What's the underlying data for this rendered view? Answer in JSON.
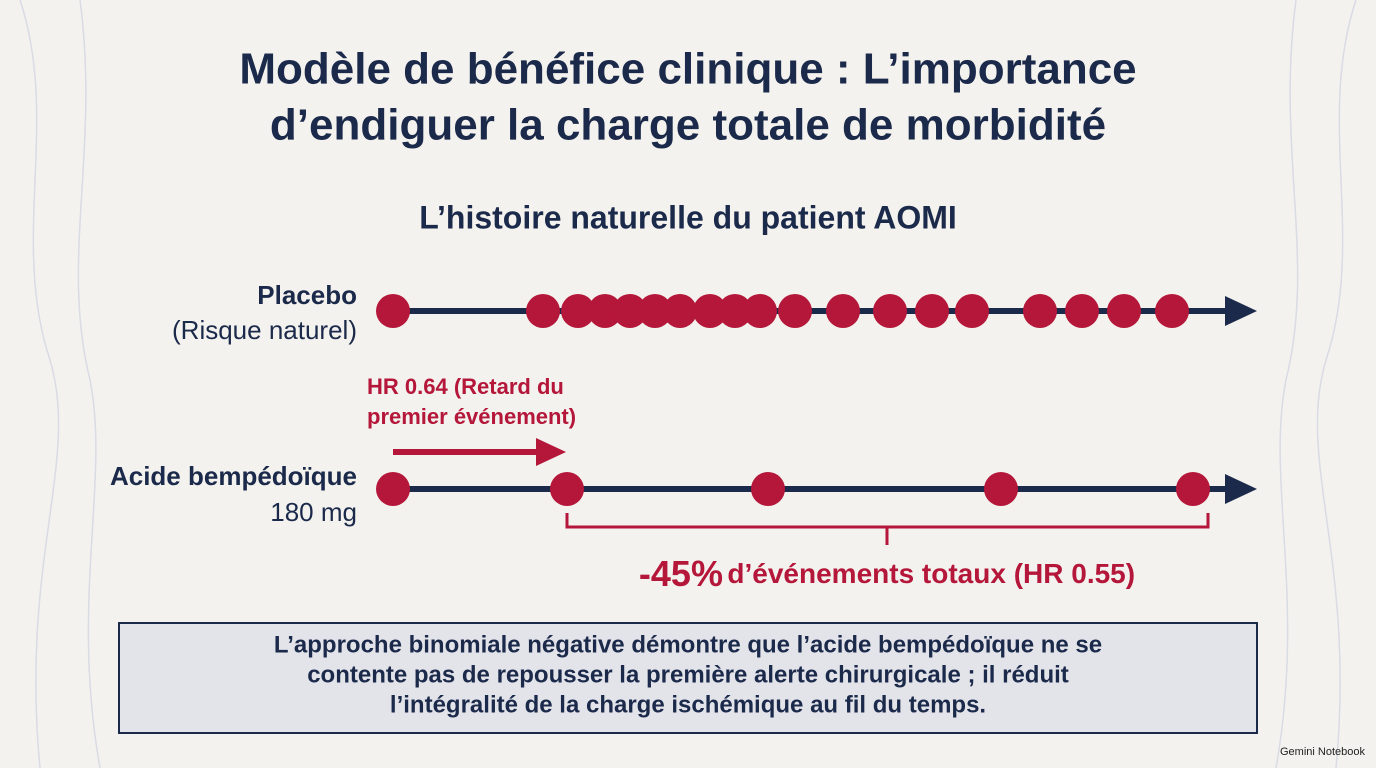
{
  "title": [
    "Modèle de bénéfice clinique : L’importance",
    "d’endiguer la charge totale de morbidité"
  ],
  "subtitle": "L’histoire naturelle du patient AOMI",
  "rows": [
    {
      "label": "Placebo",
      "sublabel": "(Risque naturel)"
    },
    {
      "label": "Acide bempédoïque",
      "sublabel": "180 mg"
    }
  ],
  "delay_note": [
    "HR 0.64 (Retard du",
    "premier événement)"
  ],
  "reduction_note": {
    "value": "-45%",
    "text": "d’événements totaux (HR 0.55)"
  },
  "conclusion": [
    "L’approche binomiale négative démontre que l’acide bempédoïque ne se",
    "contente pas de repousser la première alerte chirurgicale ; il réduit",
    "l’intégralité de la charge ischémique au fil du temps."
  ],
  "watermark": "Gemini Notebook"
}
